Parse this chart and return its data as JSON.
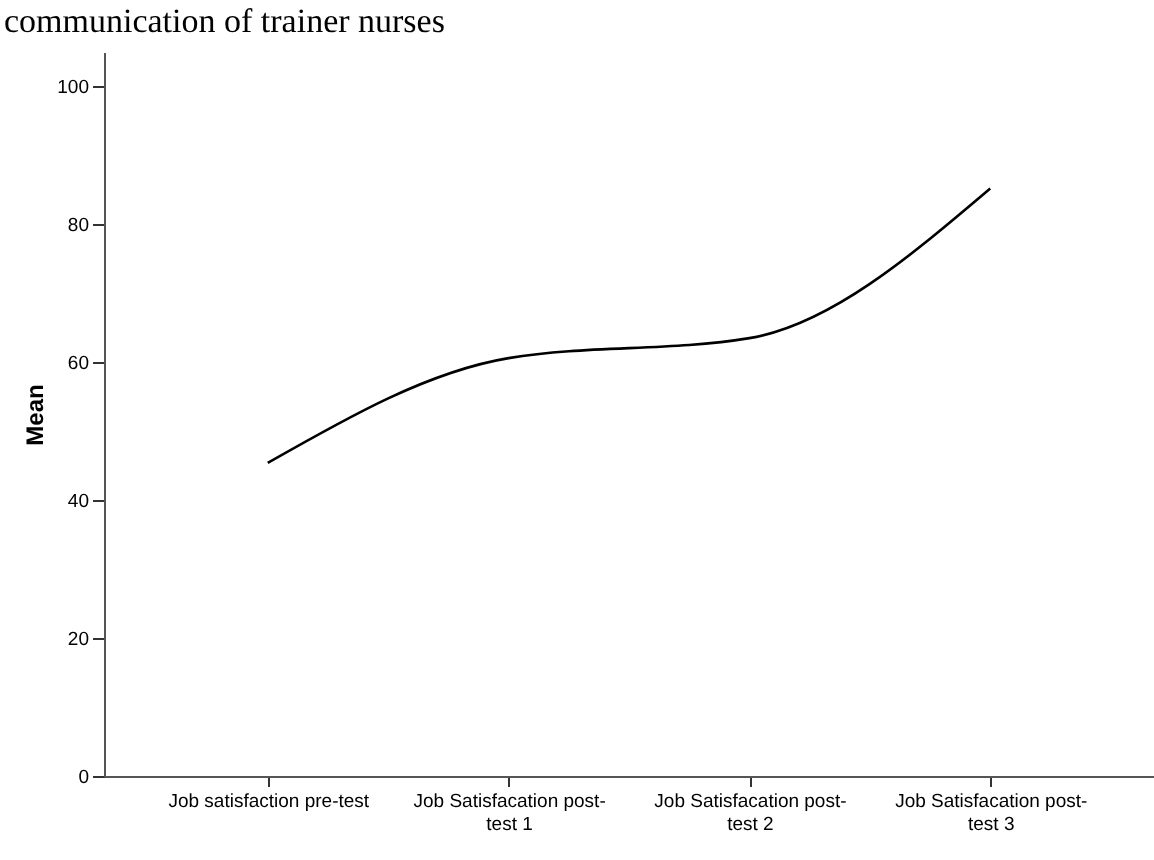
{
  "chart_data": {
    "type": "line",
    "title": "communication of trainer nurses",
    "ylabel": "Mean",
    "categories": [
      "Job satisfaction pre-test",
      "Job Satisfacation post-test 1",
      "Job Satisfacation post-test 2",
      "Job Satisfacation post-test 3"
    ],
    "series": [
      {
        "color": "#000000",
        "values": [
          45.4,
          60.6,
          63.5,
          85.2
        ]
      }
    ],
    "ylim": [
      0,
      105
    ],
    "yticks": [
      0,
      20,
      40,
      60,
      80,
      100
    ],
    "grid": false,
    "legend": false,
    "marker": "none",
    "line_style": "solid"
  }
}
